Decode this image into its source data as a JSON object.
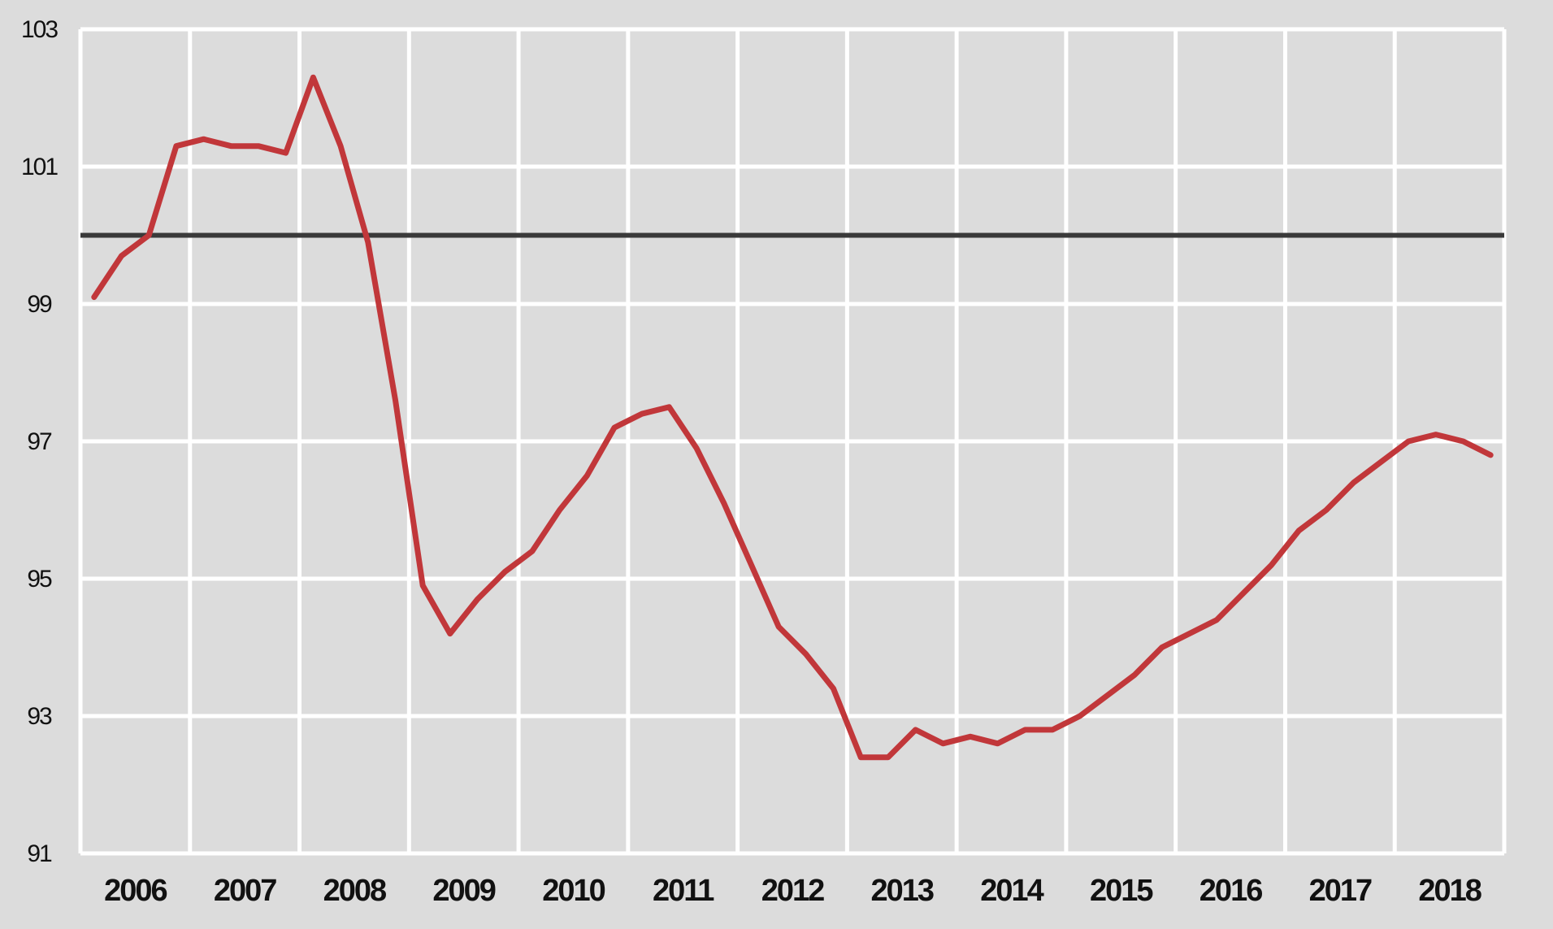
{
  "chart_data": {
    "type": "line",
    "title": "",
    "xlabel": "",
    "ylabel": "",
    "ylim": [
      91,
      103
    ],
    "yticks": [
      91,
      93,
      95,
      97,
      99,
      101,
      103
    ],
    "ytick_labels": [
      "91",
      "93",
      "95",
      "97",
      "99",
      "101",
      "103"
    ],
    "year_labels": [
      "2006",
      "2007",
      "2008",
      "2009",
      "2010",
      "2011",
      "2012",
      "2013",
      "2014",
      "2015",
      "2016",
      "2017",
      "2018"
    ],
    "x_start_year": 2006,
    "quarters_per_year": 4,
    "grid": true,
    "reference_line": 100,
    "colors": {
      "background": "#dcdcdc",
      "grid": "#ffffff",
      "series": "#c1373a",
      "reference": "#3a3a3a",
      "text": "#111111"
    },
    "series": [
      {
        "values": [
          99.1,
          99.7,
          100.0,
          101.3,
          101.4,
          101.3,
          101.3,
          101.2,
          102.3,
          101.3,
          99.9,
          97.6,
          94.9,
          94.2,
          94.7,
          95.1,
          95.4,
          96.0,
          96.5,
          97.2,
          97.4,
          97.5,
          96.9,
          96.1,
          95.2,
          94.3,
          93.9,
          93.4,
          92.4,
          92.4,
          92.8,
          92.6,
          92.7,
          92.6,
          92.8,
          92.8,
          93.0,
          93.3,
          93.6,
          94.0,
          94.2,
          94.4,
          94.8,
          95.2,
          95.7,
          96.0,
          96.4,
          96.7,
          97.0,
          97.1,
          97.0,
          96.8
        ]
      }
    ]
  }
}
